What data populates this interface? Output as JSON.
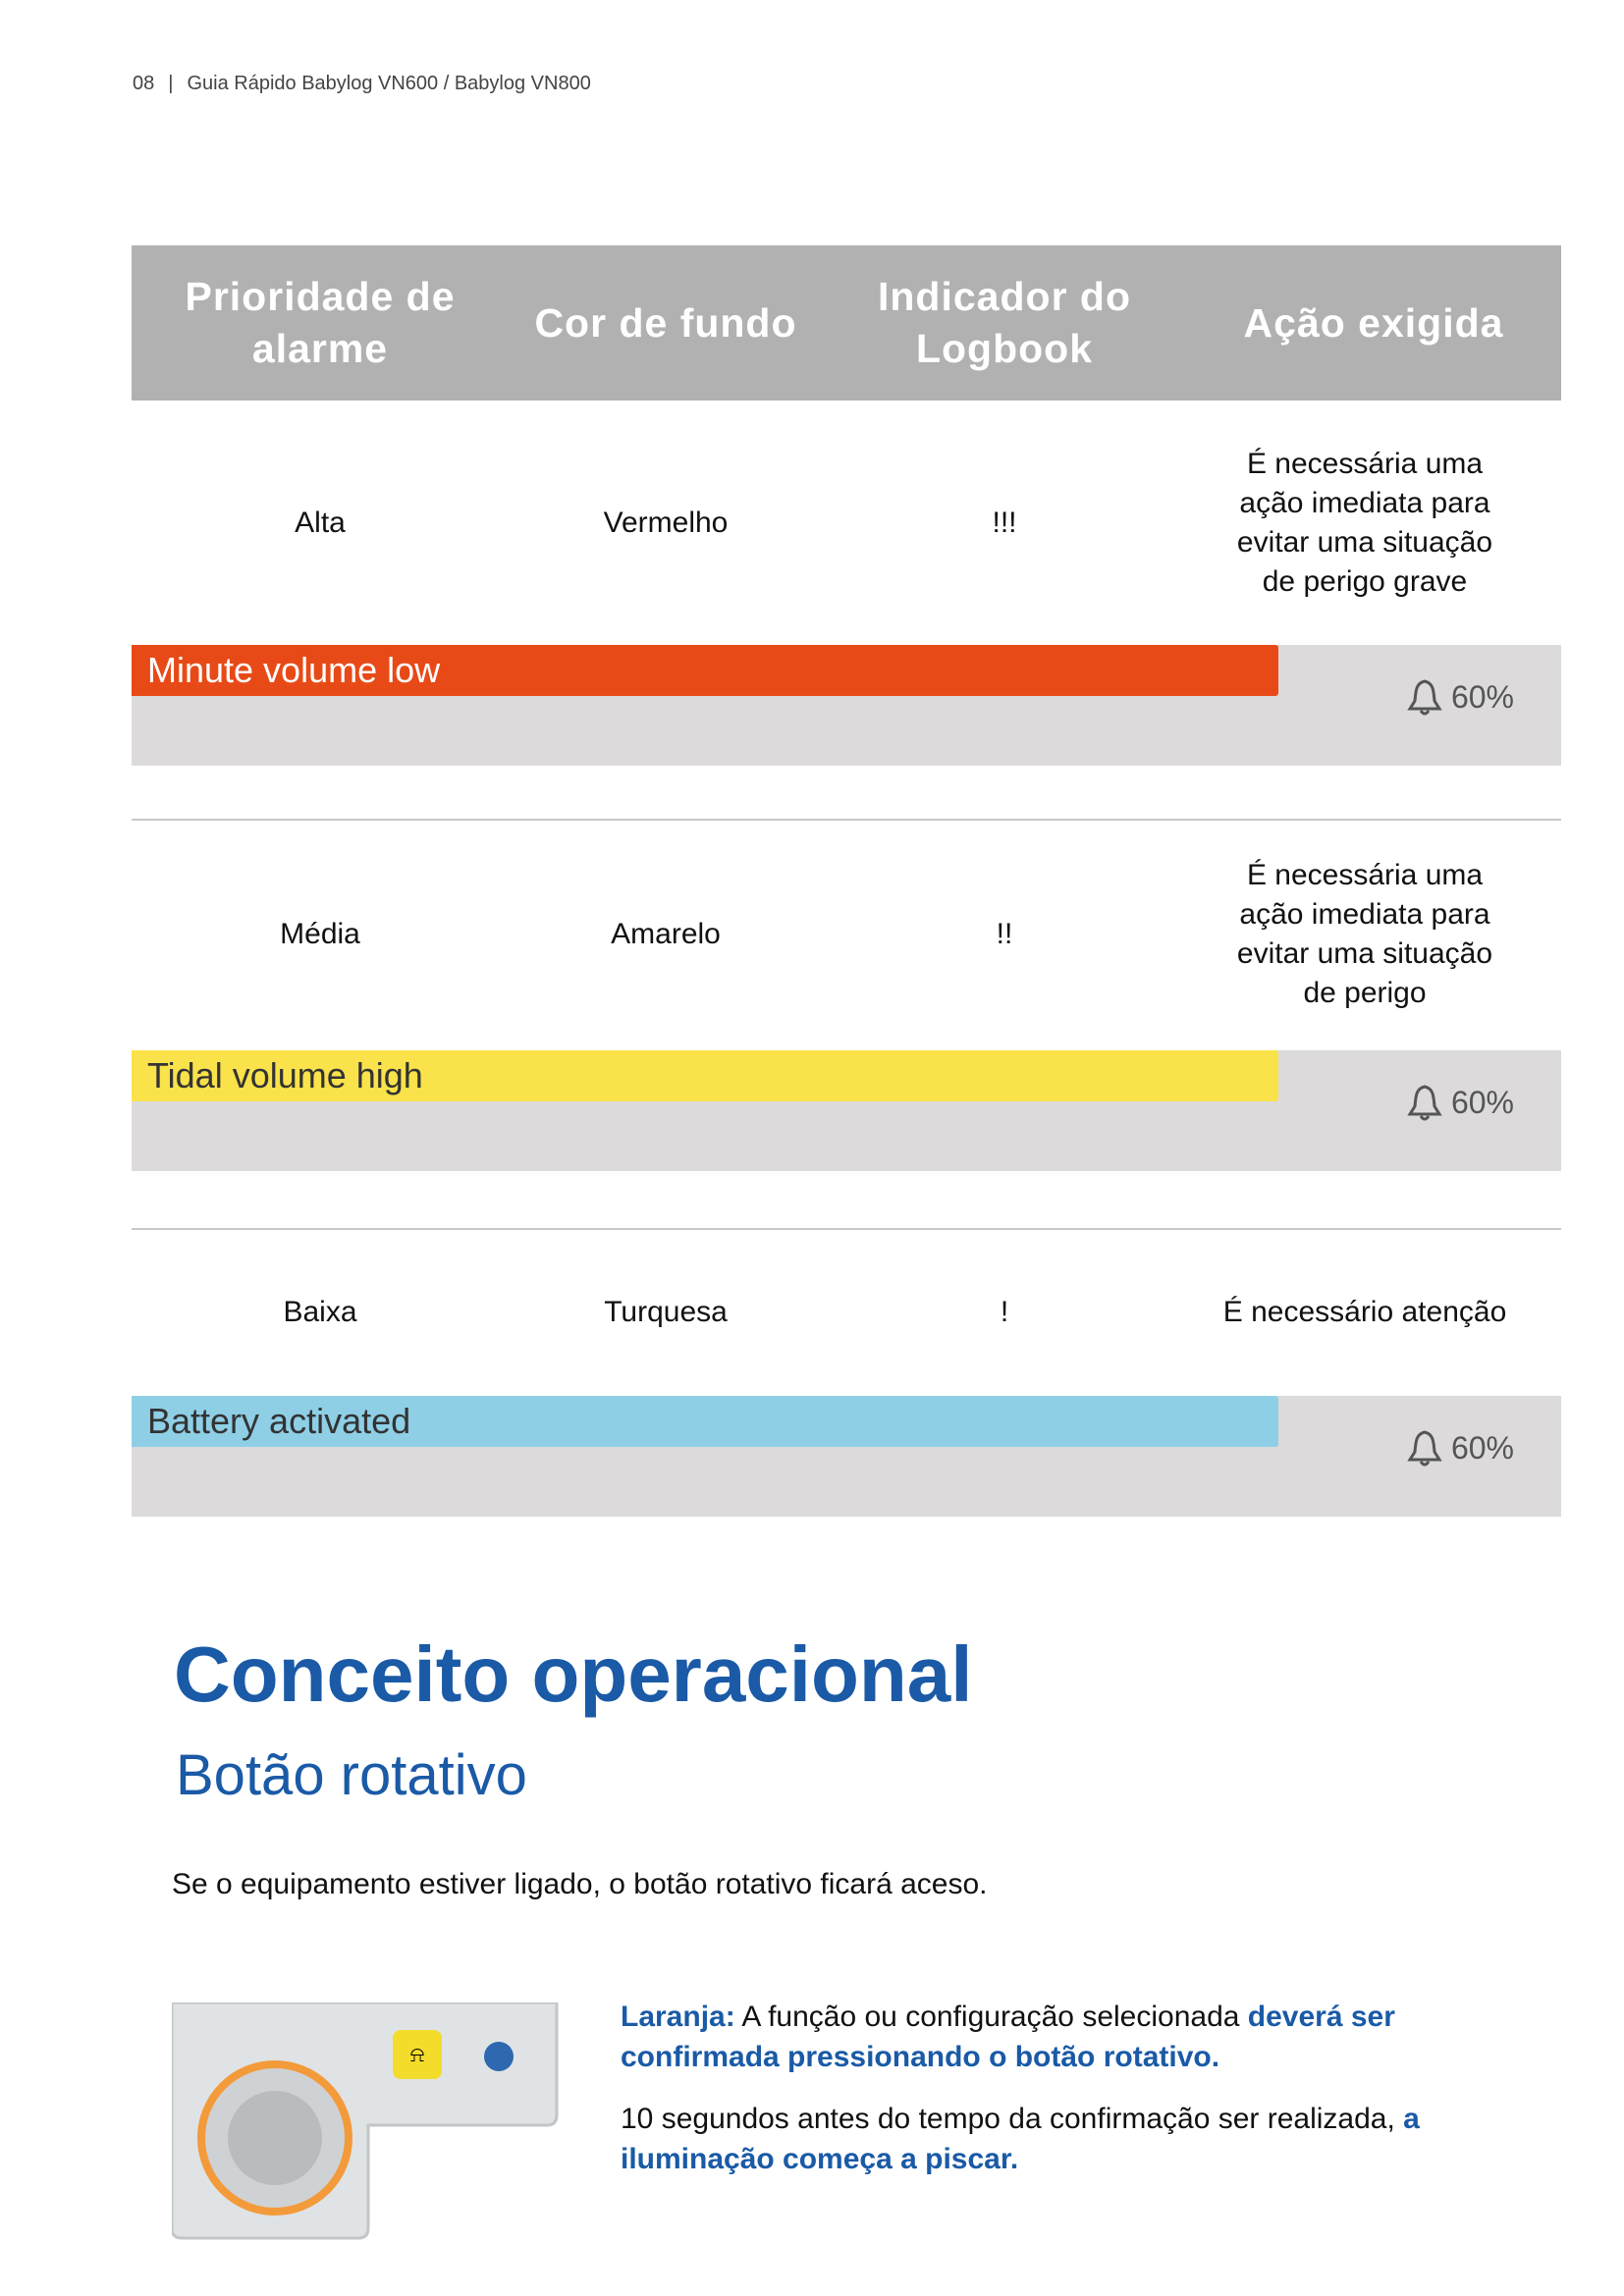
{
  "header": {
    "page": "08",
    "separator": "|",
    "title": "Guia Rápido Babylog VN600 / Babylog VN800"
  },
  "table": {
    "columns": [
      "Prioridade de alarme",
      "Cor de fundo",
      "Indicador do Logbook",
      "Ação exigida"
    ],
    "rows": [
      {
        "cells": [
          "Alta",
          "Vermelho",
          "!!!",
          "É necessária uma ação imediata para evitar uma situação de perigo grave"
        ],
        "alarm": {
          "text": "Minute volume low",
          "level": "60%",
          "color": "#e84a17",
          "text_color": "#ffffff"
        }
      },
      {
        "cells": [
          "Média",
          "Amarelo",
          "!!",
          "É necessária uma ação imediata para evitar uma situação de perigo"
        ],
        "alarm": {
          "text": "Tidal volume high",
          "level": "60%",
          "color": "#f9e24a",
          "text_color": "#333333"
        }
      },
      {
        "cells": [
          "Baixa",
          "Turquesa",
          "!",
          "É necessário atenção"
        ],
        "alarm": {
          "text": "Battery activated",
          "level": "60%",
          "color": "#8ecfe6",
          "text_color": "#333333"
        }
      }
    ]
  },
  "section": {
    "title": "Conceito operacional",
    "subtitle": "Botão rotativo",
    "intro": "Se o equipamento estiver ligado, o botão rotativo ficará aceso.",
    "paragraphs": [
      [
        {
          "text": "Laranja:",
          "emph": true
        },
        {
          "text": " A função ou configuração selecionada ",
          "emph": false
        },
        {
          "text": "deverá ser confirmada pressionando o botão rotativo.",
          "emph": true
        }
      ],
      [
        {
          "text": "10 segundos antes do tempo da confirmação ser realizada, ",
          "emph": false
        },
        {
          "text": "a iluminação começa a piscar.",
          "emph": true
        }
      ]
    ]
  }
}
